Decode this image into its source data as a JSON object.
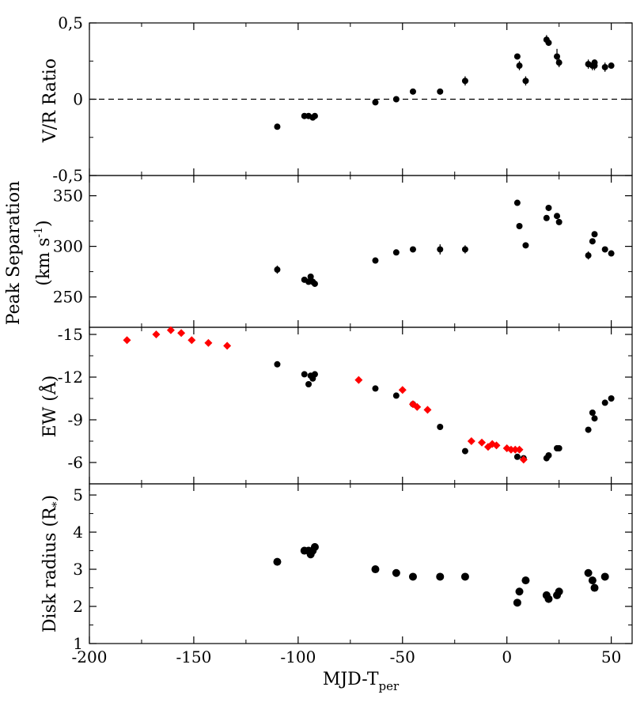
{
  "chart_data": {
    "type": "scatter",
    "shared_x": {
      "label_main": "MJD-T",
      "label_sub": "per",
      "range": [
        -200,
        60
      ],
      "ticks": [
        -200,
        -150,
        -100,
        -50,
        0,
        50
      ],
      "tick_labels": [
        "-200",
        "-150",
        "-100",
        "-50",
        "0",
        "50"
      ]
    },
    "panels": [
      {
        "id": "vr",
        "ylabel": "V/R Ratio",
        "ylim": [
          -0.5,
          0.5
        ],
        "ticks": [
          0.5,
          0,
          -0.5
        ],
        "tick_labels": [
          "0,5",
          "0",
          "-0,5"
        ],
        "reference_line": 0,
        "series": [
          {
            "name": "black",
            "color": "#000000",
            "x": [
              -110,
              -97,
              -95,
              -93,
              -92,
              -63,
              -53,
              -45,
              -32,
              -20,
              5,
              6,
              9,
              19,
              20,
              24,
              25,
              39,
              41,
              42,
              42,
              47,
              50
            ],
            "y": [
              -0.18,
              -0.11,
              -0.11,
              -0.12,
              -0.11,
              -0.02,
              0.0,
              0.05,
              0.05,
              0.12,
              0.28,
              0.22,
              0.12,
              0.39,
              0.37,
              0.28,
              0.24,
              0.23,
              0.22,
              0.22,
              0.24,
              0.21,
              0.22
            ],
            "err": [
              0,
              0,
              0,
              0,
              0,
              0,
              0.02,
              0,
              0,
              0.03,
              0,
              0.03,
              0.03,
              0.03,
              0,
              0.05,
              0.03,
              0.03,
              0.03,
              0.03,
              0,
              0.03,
              0
            ]
          }
        ]
      },
      {
        "id": "peak",
        "ylabel_line1": "Peak Separation",
        "ylabel_line2": "(km s",
        "ylabel_sup": "-1",
        "ylabel_close": ")",
        "ylim": [
          220,
          370
        ],
        "ticks": [
          250,
          300,
          350
        ],
        "tick_labels": [
          "250",
          "300",
          "350"
        ],
        "series": [
          {
            "name": "black",
            "color": "#000000",
            "x": [
              -110,
              -97,
              -95,
              -94,
              -93,
              -92,
              -63,
              -53,
              -45,
              -32,
              -20,
              5,
              6,
              9,
              19,
              20,
              24,
              25,
              39,
              41,
              42,
              47,
              50
            ],
            "y": [
              277,
              267,
              265,
              270,
              265,
              263,
              286,
              294,
              297,
              297,
              297,
              343,
              320,
              301,
              328,
              338,
              330,
              324,
              291,
              305,
              312,
              297,
              293
            ],
            "err": [
              4,
              0,
              0,
              0,
              0,
              0,
              0,
              0,
              0,
              5,
              4,
              0,
              0,
              0,
              0,
              0,
              0,
              0,
              4,
              0,
              0,
              0,
              0
            ]
          }
        ]
      },
      {
        "id": "ew",
        "ylabel": "EW (Å)",
        "ylim": [
          -4.5,
          -15.5
        ],
        "ticks": [
          -15,
          -12,
          -9,
          -6
        ],
        "tick_labels": [
          "-15",
          "-12",
          "-9",
          "-6"
        ],
        "series": [
          {
            "name": "black circles",
            "color": "#000000",
            "x": [
              -110,
              -97,
              -95,
              -94,
              -93,
              -92,
              -63,
              -53,
              -45,
              -32,
              -20,
              5,
              8,
              19,
              20,
              24,
              25,
              39,
              41,
              42,
              47,
              50
            ],
            "y": [
              -12.9,
              -12.2,
              -11.5,
              -12.1,
              -11.9,
              -12.2,
              -11.2,
              -10.7,
              -10.1,
              -8.5,
              -6.8,
              -6.4,
              -6.3,
              -6.3,
              -6.5,
              -7.0,
              -7.0,
              -8.3,
              -9.5,
              -9.1,
              -10.2,
              -10.5
            ]
          },
          {
            "name": "red diamonds",
            "color": "#ff0000",
            "x": [
              -182,
              -168,
              -161,
              -156,
              -151,
              -143,
              -134,
              -71,
              -50,
              -45,
              -43,
              -38,
              -17,
              -12,
              -9,
              -7,
              -5,
              0,
              2,
              4,
              6,
              8
            ],
            "y": [
              -14.6,
              -15.0,
              -15.3,
              -15.1,
              -14.6,
              -14.4,
              -14.2,
              -11.8,
              -11.1,
              -10.1,
              -9.9,
              -9.7,
              -7.5,
              -7.4,
              -7.1,
              -7.3,
              -7.2,
              -7.0,
              -6.9,
              -6.9,
              -6.9,
              -6.2
            ]
          }
        ]
      },
      {
        "id": "disk",
        "ylabel_main": "Disk radius (R",
        "ylabel_sub": "*",
        "ylabel_close": ")",
        "ylim": [
          1,
          5.3
        ],
        "ticks": [
          1,
          2,
          3,
          4,
          5
        ],
        "tick_labels": [
          "1",
          "2",
          "3",
          "4",
          "5"
        ],
        "series": [
          {
            "name": "black",
            "color": "#000000",
            "x": [
              -110,
              -97,
              -95,
              -94,
              -93,
              -92,
              -63,
              -53,
              -45,
              -32,
              -20,
              5,
              6,
              9,
              19,
              20,
              24,
              25,
              39,
              41,
              42,
              47
            ],
            "y": [
              3.2,
              3.5,
              3.5,
              3.4,
              3.5,
              3.6,
              3.0,
              2.9,
              2.8,
              2.8,
              2.8,
              2.1,
              2.4,
              2.7,
              2.3,
              2.2,
              2.3,
              2.4,
              2.9,
              2.7,
              2.5,
              2.8
            ]
          }
        ]
      }
    ]
  }
}
